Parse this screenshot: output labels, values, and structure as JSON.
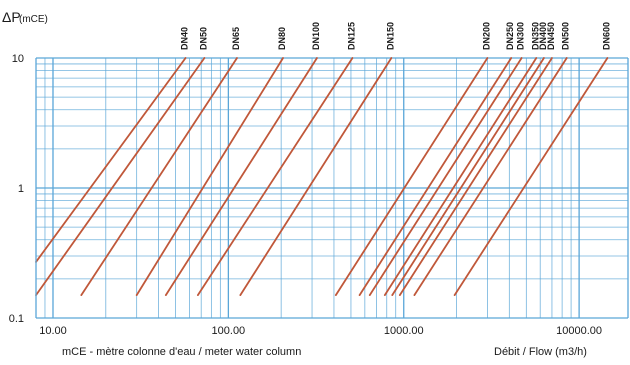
{
  "chart_data": {
    "type": "line",
    "title": "",
    "ylabel": "ΔP",
    "ylabel_unit": "(mCE)",
    "xscale": "log",
    "yscale": "log",
    "xlim": [
      8,
      19000
    ],
    "ylim": [
      0.1,
      10
    ],
    "x_ticks": [
      "10.00",
      "100.00",
      "1000.00",
      "10000.00"
    ],
    "x_tick_values": [
      10,
      100,
      1000,
      10000
    ],
    "y_ticks": [
      "10",
      "1",
      "0.1"
    ],
    "y_tick_values": [
      10,
      1,
      0.1
    ],
    "grid": true,
    "grid_color": "#5aa6d8",
    "line_color": "#c0583a",
    "series": [
      {
        "name": "DN40",
        "x": [
          8.0,
          57
        ],
        "y": [
          0.27,
          10
        ]
      },
      {
        "name": "DN50",
        "x": [
          8.0,
          73
        ],
        "y": [
          0.15,
          10
        ]
      },
      {
        "name": "DN65",
        "x": [
          14.5,
          112
        ],
        "y": [
          0.15,
          10
        ]
      },
      {
        "name": "DN80",
        "x": [
          30,
          205
        ],
        "y": [
          0.15,
          10
        ]
      },
      {
        "name": "DN100",
        "x": [
          44,
          320
        ],
        "y": [
          0.15,
          10
        ]
      },
      {
        "name": "DN125",
        "x": [
          67,
          510
        ],
        "y": [
          0.15,
          10
        ]
      },
      {
        "name": "DN150",
        "x": [
          117,
          850
        ],
        "y": [
          0.15,
          10
        ]
      },
      {
        "name": "DN200",
        "x": [
          410,
          3000
        ],
        "y": [
          0.15,
          10
        ]
      },
      {
        "name": "DN250",
        "x": [
          560,
          4100
        ],
        "y": [
          0.15,
          10
        ]
      },
      {
        "name": "DN300",
        "x": [
          640,
          4700
        ],
        "y": [
          0.15,
          10
        ]
      },
      {
        "name": "DN350",
        "x": [
          780,
          5700
        ],
        "y": [
          0.15,
          10
        ]
      },
      {
        "name": "DN400",
        "x": [
          860,
          6300
        ],
        "y": [
          0.15,
          10
        ]
      },
      {
        "name": "DN450",
        "x": [
          950,
          7000
        ],
        "y": [
          0.15,
          10
        ]
      },
      {
        "name": "DN500",
        "x": [
          1150,
          8500
        ],
        "y": [
          0.15,
          10
        ]
      },
      {
        "name": "DN600",
        "x": [
          1950,
          14500
        ],
        "y": [
          0.15,
          10
        ]
      }
    ]
  },
  "footer": {
    "left_note": "mCE - mètre colonne d'eau / meter water column",
    "right_note": "Débit / Flow (m3/h)"
  }
}
